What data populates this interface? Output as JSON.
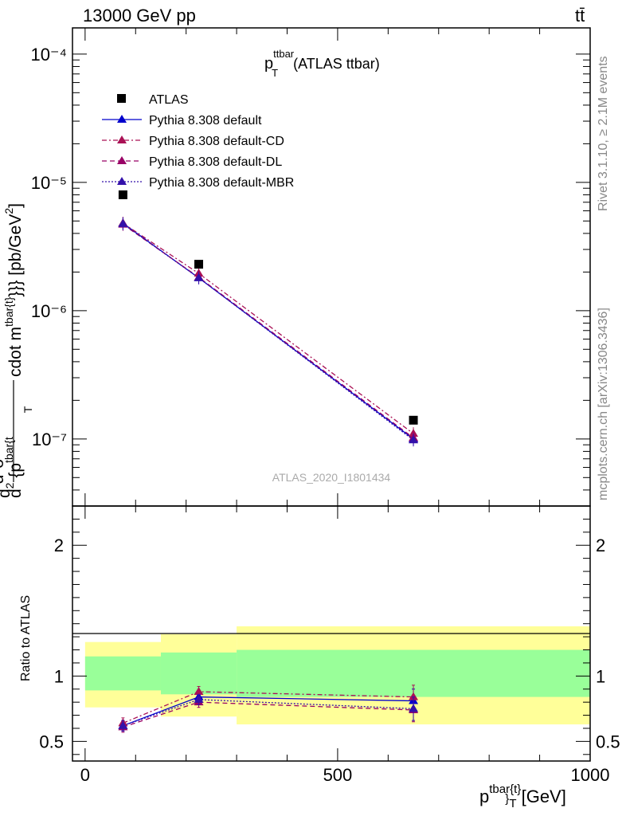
{
  "header": {
    "left": "13000 GeV pp",
    "right": "tt̄"
  },
  "side_labels": {
    "rivet": "Rivet 3.1.10, ≥ 2.1M events",
    "mcplots": "mcplots.cern.ch [arXiv:1306.3436]"
  },
  "watermark": "ATLAS_2020_I1801434",
  "main_title": {
    "base": "p",
    "sup": "ttbar",
    "sub": "T",
    "rest": " (ATLAS ttbar)"
  },
  "y_axis_label": {
    "d1": "d",
    "d2": "d",
    "sup2a": "2",
    "sigma": "σ",
    "fid": "fid",
    "cdot": "cdot m",
    "sup_tbar": "tbar{t}",
    "braces": "}}} [pb/GeV",
    "gev2": "2",
    "close": "]",
    "den_d": "d",
    "den_2": "2",
    "den_p": " {p",
    "den_sup": "tbar{t",
    "den_sub": "T"
  },
  "x_axis_label": {
    "base": "p",
    "sup": "tbar{t}",
    "sub": "}",
    "subT": "T",
    "unit": " [GeV]"
  },
  "ratio_label": "Ratio to ATLAS",
  "colors": {
    "data": "#000000",
    "default": "#0000cc",
    "cd": "#aa1155",
    "dl": "#990066",
    "mbr": "#3311aa",
    "band_inner": "#99ff99",
    "band_outer": "#ffff99"
  },
  "chart_data": {
    "type": "scatter",
    "title": "p_T^{ttbar} (ATLAS ttbar)",
    "xlabel": "p^{tbar{t}}_T [GeV]",
    "ylabel": "d^2σ^fid / d^2{p^tbar{t}_T} cdot m^tbar{t}}}} [pb/GeV^2]",
    "xlim": [
      -25,
      1000
    ],
    "ylim": [
      3e-08,
      0.00016
    ],
    "yscale": "log",
    "x_ticks": [
      "0",
      "500",
      "1000"
    ],
    "y_ticks": [
      "10⁻⁴",
      "10⁻⁵",
      "10⁻⁶",
      "10⁻⁷"
    ],
    "bins": [
      [
        0,
        150
      ],
      [
        150,
        300
      ],
      [
        300,
        1000
      ]
    ],
    "x": [
      75,
      225,
      650
    ],
    "legend": [
      "ATLAS",
      "Pythia 8.308 default",
      "Pythia 8.308 default-CD",
      "Pythia 8.308 default-DL",
      "Pythia 8.308 default-MBR"
    ],
    "legend_placement": "top-left",
    "series": [
      {
        "name": "ATLAS",
        "values": [
          8e-06,
          2.3e-06,
          1.4e-07
        ]
      },
      {
        "name": "Pythia 8.308 default",
        "values": [
          4.8e-06,
          1.8e-06,
          1e-07
        ]
      },
      {
        "name": "Pythia 8.308 default-CD",
        "values": [
          4.8e-06,
          1.95e-06,
          1.1e-07
        ]
      },
      {
        "name": "Pythia 8.308 default-DL",
        "values": [
          4.7e-06,
          1.82e-06,
          1.02e-07
        ]
      },
      {
        "name": "Pythia 8.308 default-MBR",
        "values": [
          4.75e-06,
          1.8e-06,
          9.8e-08
        ]
      }
    ],
    "ratio": {
      "ylabel": "Ratio to ATLAS",
      "ylim": [
        0.35,
        2.3
      ],
      "y_ticks": [
        "0.5",
        "1",
        "2"
      ],
      "band_inner": [
        [
          0.89,
          1.15
        ],
        [
          0.86,
          1.18
        ],
        [
          0.84,
          1.2
        ]
      ],
      "band_outer": [
        [
          0.76,
          1.26
        ],
        [
          0.69,
          1.32
        ],
        [
          0.63,
          1.38
        ]
      ],
      "series": [
        {
          "name": "Pythia 8.308 default",
          "values": [
            0.62,
            0.84,
            0.81
          ]
        },
        {
          "name": "Pythia 8.308 default-CD",
          "values": [
            0.64,
            0.88,
            0.84
          ]
        },
        {
          "name": "Pythia 8.308 default-DL",
          "values": [
            0.61,
            0.8,
            0.74
          ]
        },
        {
          "name": "Pythia 8.308 default-MBR",
          "values": [
            0.62,
            0.82,
            0.75
          ]
        }
      ]
    }
  }
}
